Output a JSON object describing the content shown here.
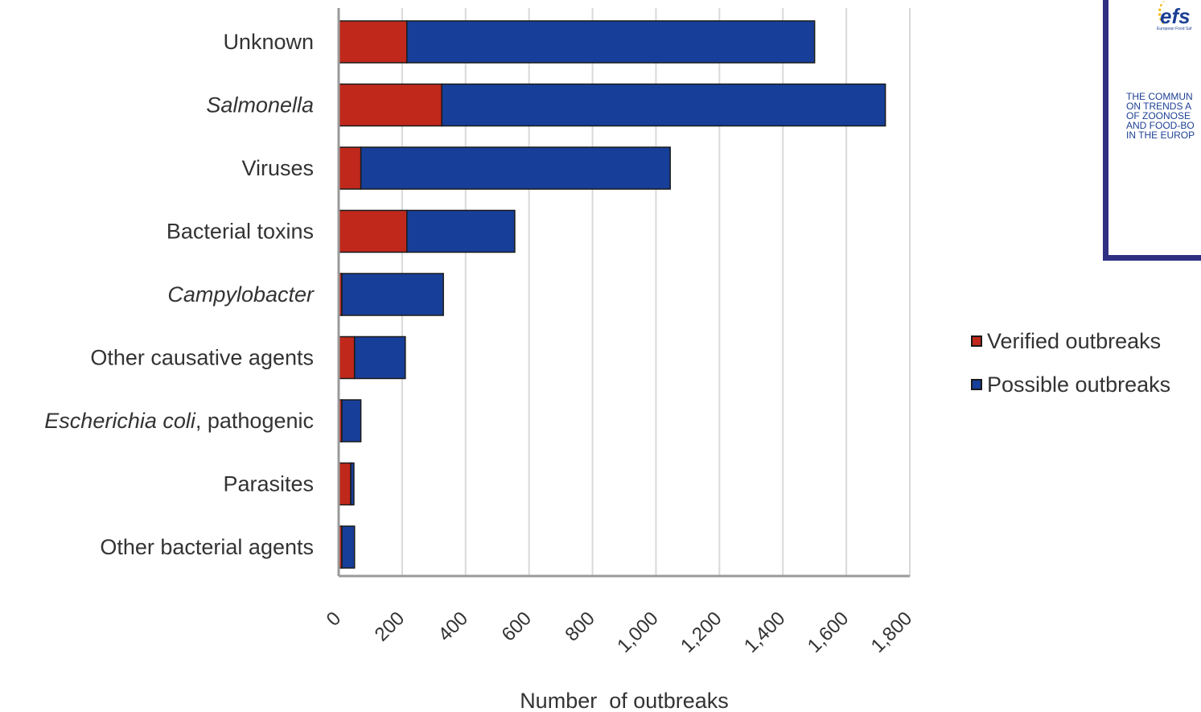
{
  "chart_data": {
    "type": "bar",
    "orientation": "horizontal",
    "stacked": true,
    "categories": [
      "Unknown",
      "Salmonella",
      "Viruses",
      "Bacterial toxins",
      "Campylobacter",
      "Other causative agents",
      "Escherichia coli, pathogenic",
      "Parasites",
      "Other bacterial agents"
    ],
    "italic_categories": [
      "Salmonella",
      "Campylobacter",
      "Escherichia coli"
    ],
    "series": [
      {
        "name": "Verified outbreaks",
        "color": "#c0281c",
        "values": [
          215,
          325,
          70,
          215,
          10,
          50,
          10,
          38,
          10
        ]
      },
      {
        "name": "Possible outbreaks",
        "color": "#173f99",
        "values": [
          1285,
          1398,
          975,
          340,
          320,
          160,
          60,
          10,
          40
        ]
      }
    ],
    "x_ticks": [
      "0",
      "200",
      "400",
      "600",
      "800",
      "1,000",
      "1,200",
      "1,400",
      "1,600",
      "1,800"
    ],
    "xlim": [
      0,
      1800
    ],
    "xlabel": "Number  of outbreaks",
    "ylabel": "",
    "grid": "vertical",
    "legend_position": "right"
  },
  "legend": {
    "items": [
      {
        "label": "Verified outbreaks",
        "color": "#c0281c"
      },
      {
        "label": "Possible outbreaks",
        "color": "#173f99"
      }
    ]
  },
  "cover": {
    "logo": "efs",
    "agency": "European Food Saf",
    "title_lines": [
      "THE COMMUN",
      "ON TRENDS A",
      "OF ZOONOSE",
      "AND FOOD-BO",
      "IN THE EUROP"
    ]
  }
}
